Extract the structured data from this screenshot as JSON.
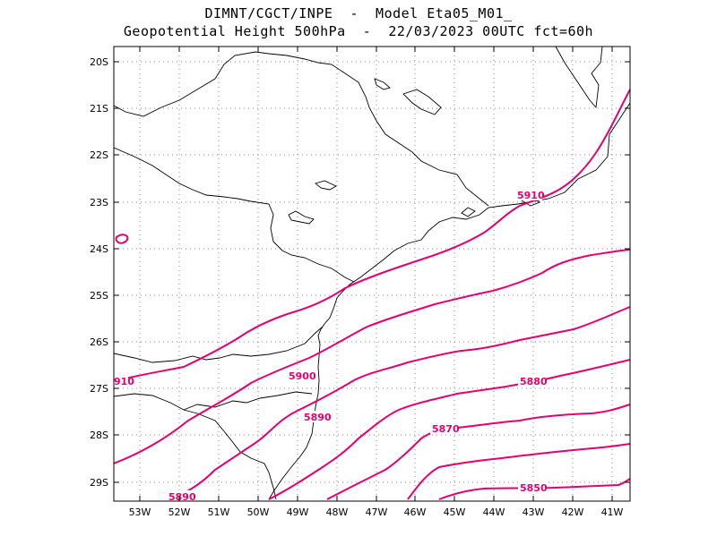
{
  "title": {
    "line1": "DIMNT/CGCT/INPE  -  Model Eta05_M01_",
    "line2": "Geopotential Height 500hPa  -  22/03/2023 00UTC fct=60h"
  },
  "map": {
    "lon_range": [
      -53.6,
      -40.5
    ],
    "lat_range": [
      -29.45,
      -19.7
    ],
    "lat_ticks": [
      "20S",
      "21S",
      "22S",
      "23S",
      "24S",
      "25S",
      "26S",
      "27S",
      "28S",
      "29S"
    ],
    "lon_ticks": [
      "53W",
      "52W",
      "51W",
      "50W",
      "49W",
      "48W",
      "47W",
      "46W",
      "45W",
      "44W",
      "43W",
      "42W",
      "41W"
    ],
    "contour_color": "#e6006e",
    "coast_color": "#000000",
    "contour_labels": [
      "5910",
      "910",
      "5900",
      "5890",
      "5880",
      "5870",
      "5890",
      "5850"
    ]
  }
}
